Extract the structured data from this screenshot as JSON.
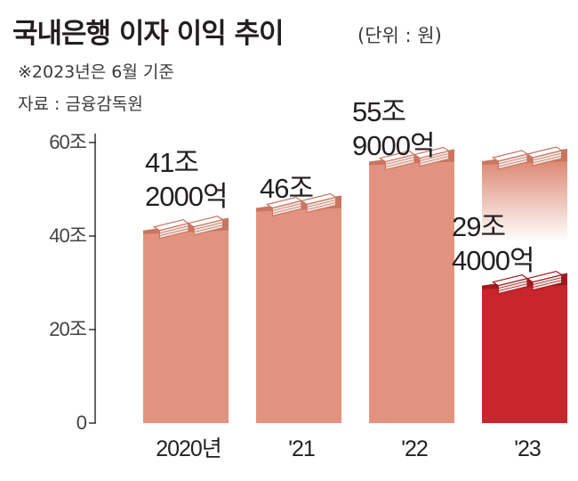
{
  "title": "국내은행 이자 이익 추이",
  "unit": "(단위 : 원)",
  "note": "※2023년은 6월 기준",
  "source": "자료 : 금융감독원",
  "colors": {
    "bar": "#e2937f",
    "bar_side": "#c97561",
    "bar_highlight": "#c8262c",
    "bar_highlight_side": "#9f1b20",
    "axis": "#333333"
  },
  "chart_data": {
    "type": "bar",
    "categories": [
      "2020년",
      "'21",
      "'22",
      "'23"
    ],
    "values": [
      41.2,
      46,
      55.9,
      29.4
    ],
    "data_labels": [
      [
        "41조",
        "2000억"
      ],
      [
        "46조"
      ],
      [
        "55조",
        "9000억"
      ],
      [
        "29조",
        "4000억"
      ]
    ],
    "yticks": [
      {
        "value": 0,
        "label": "0"
      },
      {
        "value": 20,
        "label": "20조"
      },
      {
        "value": 40,
        "label": "40조"
      },
      {
        "value": 60,
        "label": "60조"
      }
    ],
    "ylim": [
      0,
      70
    ],
    "highlight_index": 3,
    "ghost_value": 56,
    "ylabel": "",
    "xlabel": ""
  }
}
